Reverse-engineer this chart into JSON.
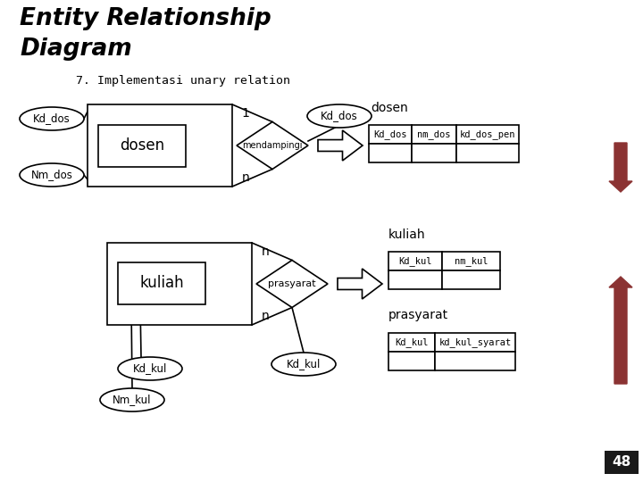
{
  "title_line1": "Entity Relationship",
  "title_line2": "Diagram",
  "subtitle": "7. Implementasi unary relation",
  "bg_color": "#ffffff",
  "text_color": "#000000",
  "arrow_color": "#8B3333",
  "page_number": "48"
}
